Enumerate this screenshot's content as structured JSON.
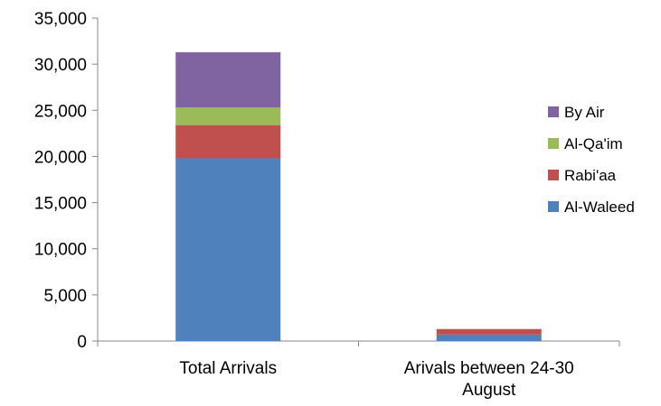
{
  "chart_data": {
    "type": "bar",
    "stacked": true,
    "categories": [
      "Total Arrivals",
      "Arivals between 24-30 August"
    ],
    "series": [
      {
        "name": "Al-Waleed",
        "color": "#4F81BD",
        "values": [
          19800,
          700
        ]
      },
      {
        "name": "Rabi'aa",
        "color": "#C0504D",
        "values": [
          3600,
          600
        ]
      },
      {
        "name": "Al-Qa'im",
        "color": "#9BBB59",
        "values": [
          1900,
          0
        ]
      },
      {
        "name": "By Air",
        "color": "#8064A2",
        "values": [
          6000,
          0
        ]
      }
    ],
    "title": "",
    "xlabel": "",
    "ylabel": "",
    "ylim": [
      0,
      35000
    ],
    "yticks": [
      "0",
      "5,000",
      "10,000",
      "15,000",
      "20,000",
      "25,000",
      "30,000",
      "35,000"
    ],
    "grid": false,
    "legend_position": "right",
    "legend_order": [
      "By Air",
      "Al-Qa'im",
      "Rabi'aa",
      "Al-Waleed"
    ]
  }
}
